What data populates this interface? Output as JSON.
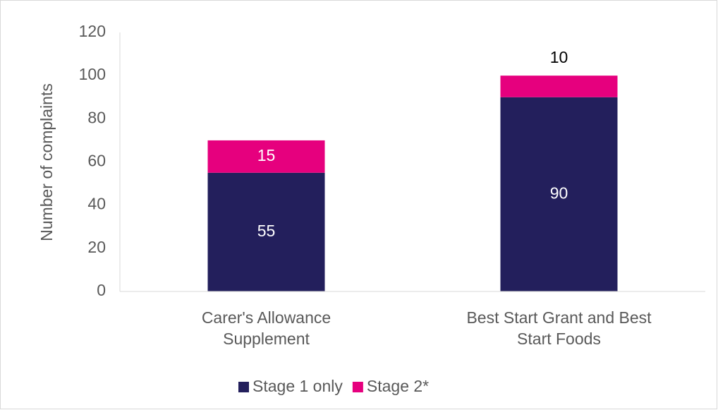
{
  "chart_data": {
    "type": "stacked_bar",
    "ylabel": "Number of complaints",
    "categories": [
      "Carer's Allowance Supplement",
      "Best Start Grant and Best Start Foods"
    ],
    "series": [
      {
        "name": "Stage 1 only",
        "color": "#231f5c",
        "values": [
          55,
          90
        ]
      },
      {
        "name": "Stage 2*",
        "color": "#e6007e",
        "values": [
          15,
          10
        ]
      }
    ],
    "ylim": [
      0,
      120
    ],
    "yticks": [
      0,
      20,
      40,
      60,
      80,
      100,
      120
    ],
    "grid": false,
    "legend": "bottom"
  }
}
